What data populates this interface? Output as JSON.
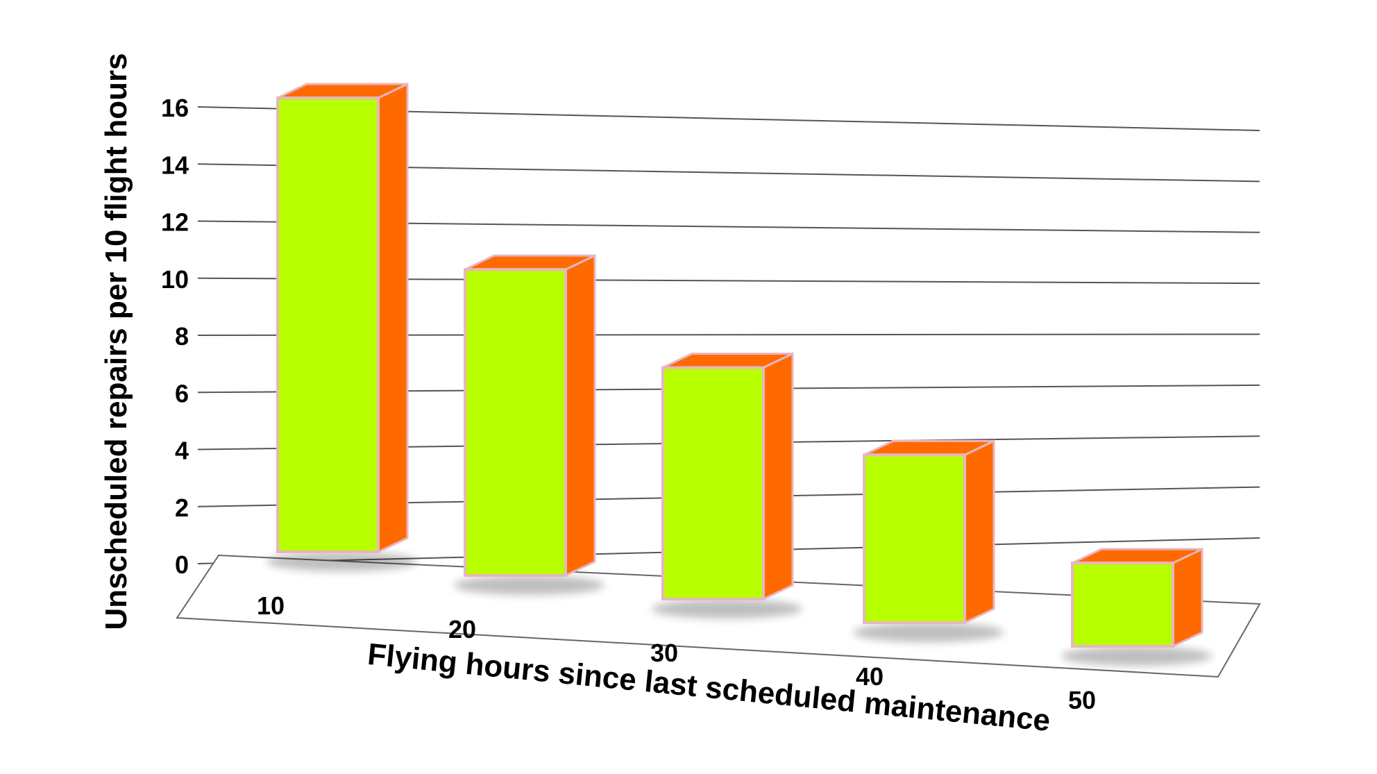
{
  "chart_data": {
    "type": "bar",
    "title": "",
    "xlabel": "Flying hours since last scheduled maintenance",
    "ylabel": "Unscheduled repairs per 10 flight hours",
    "categories": [
      "10",
      "20",
      "30",
      "40",
      "50"
    ],
    "values": [
      16,
      11,
      8.5,
      6.3,
      3.2
    ],
    "ylim": [
      0,
      16
    ],
    "yticks": [
      "0",
      "2",
      "4",
      "6",
      "8",
      "10",
      "12",
      "14",
      "16"
    ],
    "style": "3d-perspective",
    "grid": true,
    "legend": "none",
    "colors": {
      "bar_front": "#b8ff00",
      "bar_side": "#ff6a00",
      "bar_top": "#ff6a00",
      "bar_edge": "#e8b6c0",
      "gridline": "#555555"
    }
  }
}
